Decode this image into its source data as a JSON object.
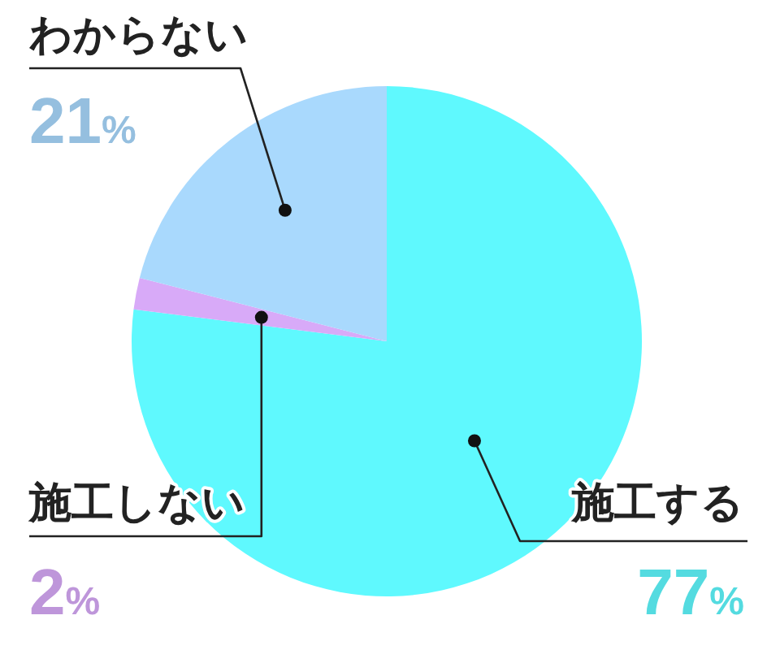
{
  "chart_data": {
    "type": "pie",
    "categories": [
      "施工する",
      "施工しない",
      "わからない"
    ],
    "values": [
      77,
      2,
      21
    ],
    "colors": [
      "#5ff9fe",
      "#d8aaf8",
      "#a9d9fd"
    ],
    "value_labels": [
      "77%",
      "2%",
      "21%"
    ]
  }
}
